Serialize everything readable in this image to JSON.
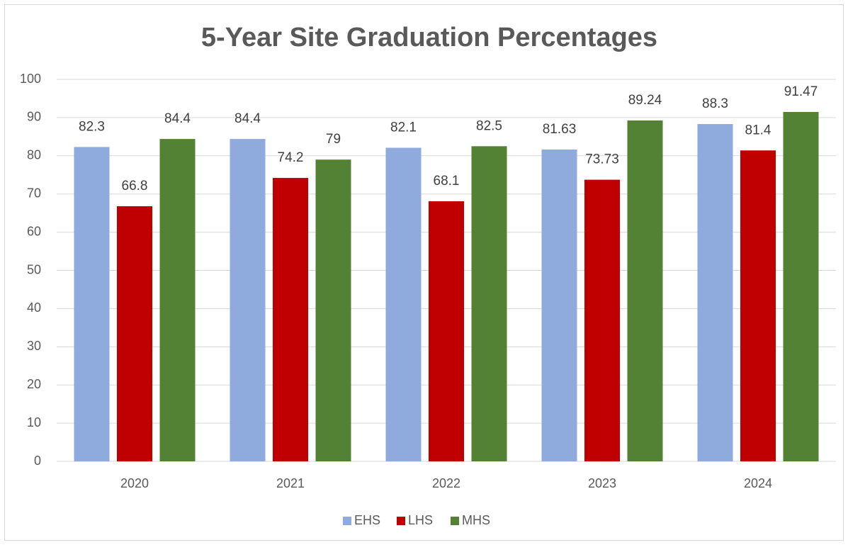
{
  "chart_data": {
    "type": "bar",
    "title": "5-Year Site Graduation Percentages",
    "categories": [
      "2020",
      "2021",
      "2022",
      "2023",
      "2024"
    ],
    "series": [
      {
        "name": "EHS",
        "color": "#8faadc",
        "values": [
          82.3,
          84.4,
          82.1,
          81.63,
          88.3
        ]
      },
      {
        "name": "LHS",
        "color": "#c00000",
        "values": [
          66.8,
          74.2,
          68.1,
          73.73,
          81.4
        ]
      },
      {
        "name": "MHS",
        "color": "#548235",
        "values": [
          84.4,
          79,
          82.5,
          89.24,
          91.47
        ]
      }
    ],
    "ylim": [
      0,
      100
    ],
    "yticks": [
      0,
      10,
      20,
      30,
      40,
      50,
      60,
      70,
      80,
      90,
      100
    ],
    "grid": true,
    "legend": "bottom"
  }
}
